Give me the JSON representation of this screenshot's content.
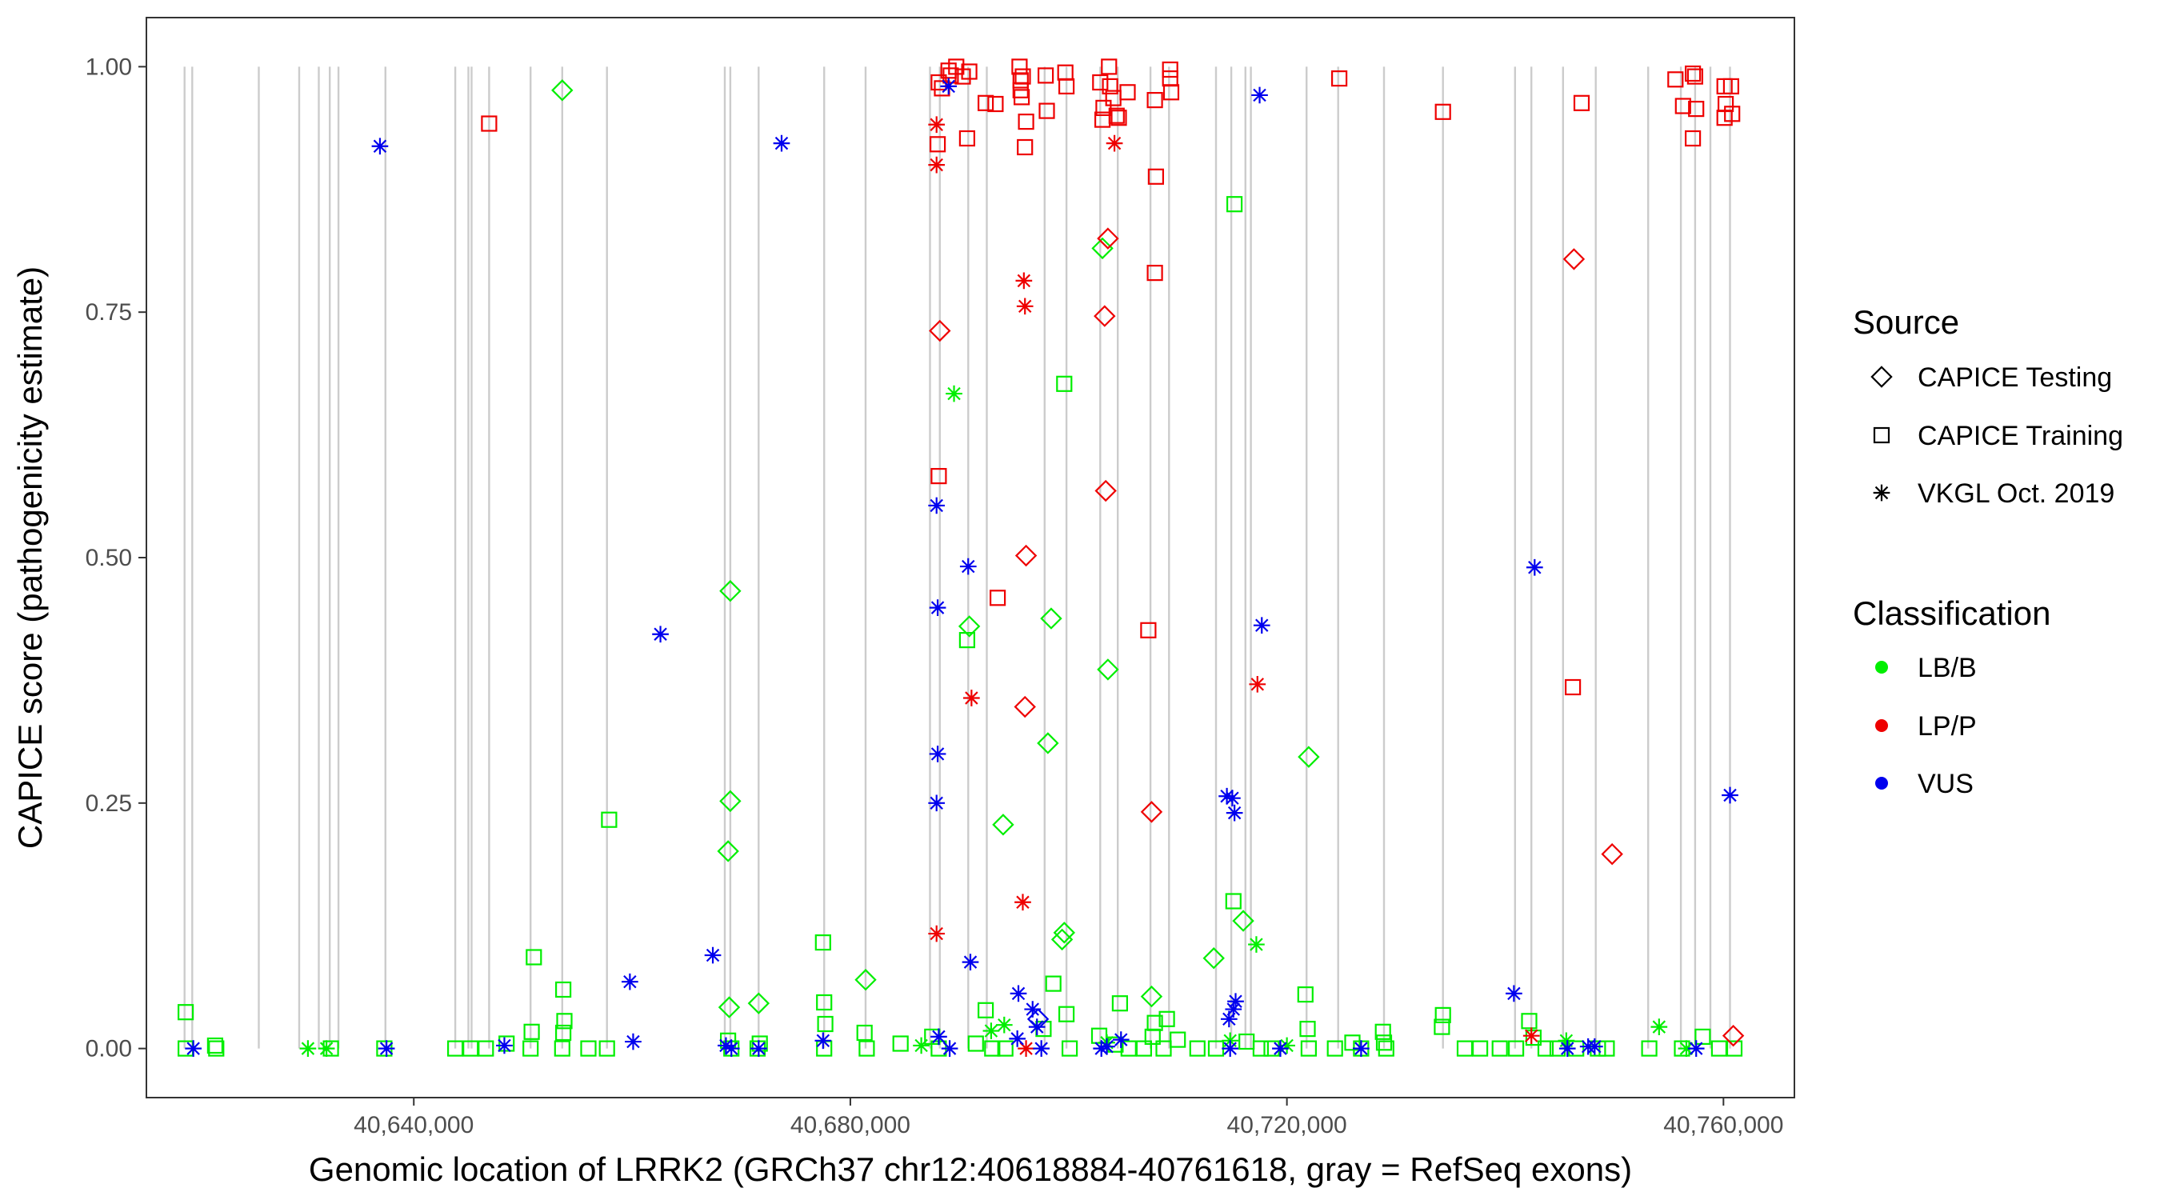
{
  "chart_data": {
    "type": "scatter",
    "xlabel": "Genomic location of LRRK2 (GRCh37 chr12:40618884-40761618, gray = RefSeq exons)",
    "ylabel": "CAPICE score (pathogenicity estimate)",
    "xlim": [
      40615500,
      40766500
    ],
    "ylim": [
      -0.05,
      1.05
    ],
    "x_ticks": [
      40640000,
      40680000,
      40720000,
      40760000
    ],
    "x_tick_labels": [
      "40,640,000",
      "40,680,000",
      "40,720,000",
      "40,760,000"
    ],
    "y_ticks": [
      0.0,
      0.25,
      0.5,
      0.75,
      1.0
    ],
    "y_tick_labels": [
      "0.00",
      "0.25",
      "0.50",
      "0.75",
      "1.00"
    ],
    "exons": [
      40619000,
      40619700,
      40625800,
      40629500,
      40631300,
      40632300,
      40633100,
      40637400,
      40643800,
      40645000,
      40645300,
      40646900,
      40650700,
      40653600,
      40657700,
      40668500,
      40669000,
      40671600,
      40677600,
      40681400,
      40687300,
      40688200,
      40690800,
      40692500,
      40697800,
      40699800,
      40702900,
      40704500,
      40707500,
      40709200,
      40713500,
      40714900,
      40716200,
      40716700,
      40721800,
      40724700,
      40728900,
      40734300,
      40740900,
      40742400,
      40745300,
      40748300,
      40753100,
      40756100,
      40757400,
      40758800,
      40760600
    ],
    "legend": {
      "source_title": "Source",
      "source_items": [
        {
          "label": "CAPICE Testing",
          "shape": "diamond"
        },
        {
          "label": "CAPICE Training",
          "shape": "square"
        },
        {
          "label": "VKGL Oct. 2019",
          "shape": "asterisk"
        }
      ],
      "class_title": "Classification",
      "class_items": [
        {
          "label": "LB/B",
          "color": "#00ee00"
        },
        {
          "label": "LP/P",
          "color": "#ee0000"
        },
        {
          "label": "VUS",
          "color": "#0000ee"
        }
      ]
    },
    "series": [
      {
        "name": "LB/B - CAPICE Testing",
        "class": "LB/B",
        "source": "CAPICE Testing",
        "color": "#00ee00",
        "shape": "diamond",
        "points": [
          [
            40653600,
            0.976
          ],
          [
            40669000,
            0.466
          ],
          [
            40669000,
            0.252
          ],
          [
            40668800,
            0.201
          ],
          [
            40668900,
            0.042
          ],
          [
            40671600,
            0.046
          ],
          [
            40681400,
            0.07
          ],
          [
            40690900,
            0.43
          ],
          [
            40694000,
            0.228
          ],
          [
            40698400,
            0.438
          ],
          [
            40698100,
            0.311
          ],
          [
            40699600,
            0.118
          ],
          [
            40699400,
            0.111
          ],
          [
            40703100,
            0.815
          ],
          [
            40703600,
            0.386
          ],
          [
            40707600,
            0.053
          ],
          [
            40713300,
            0.092
          ],
          [
            40716000,
            0.13
          ],
          [
            40722000,
            0.297
          ]
        ]
      },
      {
        "name": "LB/B - CAPICE Training",
        "class": "LB/B",
        "source": "CAPICE Training",
        "color": "#00ee00",
        "shape": "square",
        "points": [
          [
            40619100,
            0.037
          ],
          [
            40619100,
            0.0
          ],
          [
            40621800,
            0.003
          ],
          [
            40621900,
            0.0
          ],
          [
            40632400,
            0.0
          ],
          [
            40637300,
            0.0
          ],
          [
            40643800,
            0.0
          ],
          [
            40645200,
            0.0
          ],
          [
            40646600,
            0.0
          ],
          [
            40648500,
            0.005
          ],
          [
            40650700,
            0.0
          ],
          [
            40650800,
            0.017
          ],
          [
            40651000,
            0.093
          ],
          [
            40653700,
            0.06
          ],
          [
            40653800,
            0.028
          ],
          [
            40653700,
            0.016
          ],
          [
            40653600,
            0.0
          ],
          [
            40656000,
            0.0
          ],
          [
            40657700,
            0.0
          ],
          [
            40657900,
            0.233
          ],
          [
            40668800,
            0.008
          ],
          [
            40669100,
            0.0
          ],
          [
            40671700,
            0.005
          ],
          [
            40671500,
            0.0
          ],
          [
            40677500,
            0.108
          ],
          [
            40677600,
            0.047
          ],
          [
            40677700,
            0.025
          ],
          [
            40677600,
            0.0
          ],
          [
            40681300,
            0.016
          ],
          [
            40681500,
            0.0
          ],
          [
            40684600,
            0.005
          ],
          [
            40687500,
            0.012
          ],
          [
            40688100,
            0.0
          ],
          [
            40690700,
            0.416
          ],
          [
            40691500,
            0.005
          ],
          [
            40692400,
            0.039
          ],
          [
            40693000,
            0.0
          ],
          [
            40694200,
            0.0
          ],
          [
            40697700,
            0.02
          ],
          [
            40698600,
            0.066
          ],
          [
            40699600,
            0.677
          ],
          [
            40699800,
            0.035
          ],
          [
            40700100,
            0.0
          ],
          [
            40702800,
            0.013
          ],
          [
            40704300,
            0.004
          ],
          [
            40704700,
            0.046
          ],
          [
            40705500,
            0.0
          ],
          [
            40706900,
            0.0
          ],
          [
            40707700,
            0.012
          ],
          [
            40707900,
            0.026
          ],
          [
            40708700,
            0.0
          ],
          [
            40709000,
            0.03
          ],
          [
            40710000,
            0.009
          ],
          [
            40711800,
            0.0
          ],
          [
            40713500,
            0.0
          ],
          [
            40715200,
            0.86
          ],
          [
            40715100,
            0.15
          ],
          [
            40716300,
            0.007
          ],
          [
            40717600,
            0.0
          ],
          [
            40718600,
            0.0
          ],
          [
            40721700,
            0.055
          ],
          [
            40721900,
            0.02
          ],
          [
            40722000,
            0.0
          ],
          [
            40724400,
            0.0
          ],
          [
            40726000,
            0.006
          ],
          [
            40726800,
            0.0
          ],
          [
            40728800,
            0.017
          ],
          [
            40728900,
            0.006
          ],
          [
            40729100,
            0.0
          ],
          [
            40734300,
            0.034
          ],
          [
            40734200,
            0.022
          ],
          [
            40736300,
            0.0
          ],
          [
            40737700,
            0.0
          ],
          [
            40739500,
            0.0
          ],
          [
            40741000,
            0.0
          ],
          [
            40742200,
            0.028
          ],
          [
            40742600,
            0.011
          ],
          [
            40743700,
            0.0
          ],
          [
            40744800,
            0.0
          ],
          [
            40746500,
            0.0
          ],
          [
            40748500,
            0.0
          ],
          [
            40749300,
            0.0
          ],
          [
            40753200,
            0.0
          ],
          [
            40756200,
            0.0
          ],
          [
            40758100,
            0.012
          ],
          [
            40759600,
            0.0
          ],
          [
            40761000,
            0.0
          ]
        ]
      },
      {
        "name": "LB/B - VKGL Oct. 2019",
        "class": "LB/B",
        "source": "VKGL Oct. 2019",
        "color": "#00ee00",
        "shape": "asterisk",
        "points": [
          [
            40630300,
            0.0
          ],
          [
            40632000,
            0.0
          ],
          [
            40686500,
            0.003
          ],
          [
            40689500,
            0.667
          ],
          [
            40692900,
            0.018
          ],
          [
            40694100,
            0.024
          ],
          [
            40703500,
            0.006
          ],
          [
            40714800,
            0.008
          ],
          [
            40717200,
            0.106
          ],
          [
            40720000,
            0.003
          ],
          [
            40745600,
            0.008
          ],
          [
            40754100,
            0.022
          ],
          [
            40756600,
            0.0
          ]
        ]
      },
      {
        "name": "LP/P - CAPICE Testing",
        "class": "LP/P",
        "source": "CAPICE Testing",
        "color": "#ee0000",
        "shape": "diamond",
        "points": [
          [
            40688200,
            0.731
          ],
          [
            40696100,
            0.502
          ],
          [
            40696000,
            0.348
          ],
          [
            40703300,
            0.746
          ],
          [
            40703600,
            0.825
          ],
          [
            40703400,
            0.568
          ],
          [
            40707600,
            0.241
          ],
          [
            40746300,
            0.804
          ],
          [
            40749800,
            0.198
          ],
          [
            40760900,
            0.013
          ]
        ]
      },
      {
        "name": "LP/P - CAPICE Training",
        "class": "LP/P",
        "source": "CAPICE Training",
        "color": "#ee0000",
        "shape": "square",
        "points": [
          [
            40646900,
            0.942
          ],
          [
            40688100,
            0.984
          ],
          [
            40688400,
            0.978
          ],
          [
            40688000,
            0.921
          ],
          [
            40688100,
            0.583
          ],
          [
            40689000,
            0.996
          ],
          [
            40689700,
            1.0
          ],
          [
            40689200,
            0.991
          ],
          [
            40690300,
            0.99
          ],
          [
            40690900,
            0.995
          ],
          [
            40690700,
            0.927
          ],
          [
            40692400,
            0.963
          ],
          [
            40693300,
            0.962
          ],
          [
            40693500,
            0.459
          ],
          [
            40695500,
            1.0
          ],
          [
            40695800,
            0.99
          ],
          [
            40695600,
            0.986
          ],
          [
            40695600,
            0.976
          ],
          [
            40695700,
            0.969
          ],
          [
            40696100,
            0.944
          ],
          [
            40696000,
            0.918
          ],
          [
            40697900,
            0.991
          ],
          [
            40698000,
            0.955
          ],
          [
            40699700,
            0.994
          ],
          [
            40699800,
            0.98
          ],
          [
            40702900,
            0.984
          ],
          [
            40703200,
            0.958
          ],
          [
            40703100,
            0.946
          ],
          [
            40703700,
            1.0
          ],
          [
            40703800,
            0.98
          ],
          [
            40704100,
            0.968
          ],
          [
            40704400,
            0.95
          ],
          [
            40704600,
            0.948
          ],
          [
            40705400,
            0.974
          ],
          [
            40707300,
            0.426
          ],
          [
            40707900,
            0.966
          ],
          [
            40708000,
            0.888
          ],
          [
            40707900,
            0.79
          ],
          [
            40709300,
            0.997
          ],
          [
            40709300,
            0.988
          ],
          [
            40709400,
            0.974
          ],
          [
            40724800,
            0.988
          ],
          [
            40734300,
            0.954
          ],
          [
            40746200,
            0.368
          ],
          [
            40747000,
            0.963
          ],
          [
            40755600,
            0.987
          ],
          [
            40756300,
            0.96
          ],
          [
            40757200,
            0.993
          ],
          [
            40757400,
            0.99
          ],
          [
            40757500,
            0.957
          ],
          [
            40757200,
            0.927
          ],
          [
            40760100,
            0.98
          ],
          [
            40760200,
            0.962
          ],
          [
            40760100,
            0.948
          ],
          [
            40760700,
            0.98
          ],
          [
            40760800,
            0.952
          ]
        ]
      },
      {
        "name": "LP/P - VKGL Oct. 2019",
        "class": "LP/P",
        "source": "VKGL Oct. 2019",
        "color": "#ee0000",
        "shape": "asterisk",
        "points": [
          [
            40687900,
            0.941
          ],
          [
            40687900,
            0.9
          ],
          [
            40687900,
            0.117
          ],
          [
            40691100,
            0.357
          ],
          [
            40695900,
            0.782
          ],
          [
            40696000,
            0.756
          ],
          [
            40695800,
            0.149
          ],
          [
            40696100,
            0.0
          ],
          [
            40704200,
            0.922
          ],
          [
            40717300,
            0.371
          ],
          [
            40742400,
            0.013
          ]
        ]
      },
      {
        "name": "VUS - CAPICE Testing",
        "class": "VUS",
        "source": "CAPICE Testing",
        "color": "#0000ee",
        "shape": "diamond",
        "points": [
          [
            40697200,
            0.03
          ]
        ]
      },
      {
        "name": "VUS - CAPICE Training",
        "class": "VUS",
        "source": "CAPICE Training",
        "color": "#0000ee",
        "shape": "square",
        "points": []
      },
      {
        "name": "VUS - VKGL Oct. 2019",
        "class": "VUS",
        "source": "VKGL Oct. 2019",
        "color": "#0000ee",
        "shape": "asterisk",
        "points": [
          [
            40619800,
            0.0
          ],
          [
            40636900,
            0.919
          ],
          [
            40637500,
            0.0
          ],
          [
            40648300,
            0.003
          ],
          [
            40659800,
            0.068
          ],
          [
            40660100,
            0.007
          ],
          [
            40662600,
            0.422
          ],
          [
            40667400,
            0.095
          ],
          [
            40668600,
            0.003
          ],
          [
            40669100,
            0.0
          ],
          [
            40671600,
            0.0
          ],
          [
            40673700,
            0.922
          ],
          [
            40677500,
            0.008
          ],
          [
            40687900,
            0.553
          ],
          [
            40688000,
            0.449
          ],
          [
            40688000,
            0.3
          ],
          [
            40687900,
            0.25
          ],
          [
            40688100,
            0.012
          ],
          [
            40689000,
            0.98
          ],
          [
            40689100,
            0.0
          ],
          [
            40690800,
            0.491
          ],
          [
            40691000,
            0.088
          ],
          [
            40695400,
            0.056
          ],
          [
            40695300,
            0.01
          ],
          [
            40696700,
            0.04
          ],
          [
            40697100,
            0.022
          ],
          [
            40697500,
            0.0
          ],
          [
            40703000,
            0.0
          ],
          [
            40703500,
            0.002
          ],
          [
            40704800,
            0.009
          ],
          [
            40714500,
            0.257
          ],
          [
            40715000,
            0.255
          ],
          [
            40715200,
            0.24
          ],
          [
            40715300,
            0.048
          ],
          [
            40715100,
            0.04
          ],
          [
            40714700,
            0.03
          ],
          [
            40714800,
            0.0
          ],
          [
            40717500,
            0.971
          ],
          [
            40717700,
            0.431
          ],
          [
            40719400,
            0.0
          ],
          [
            40726800,
            0.0
          ],
          [
            40740800,
            0.056
          ],
          [
            40742700,
            0.49
          ],
          [
            40745700,
            0.0
          ],
          [
            40747600,
            0.002
          ],
          [
            40748200,
            0.002
          ],
          [
            40757500,
            0.0
          ],
          [
            40760600,
            0.258
          ]
        ]
      }
    ]
  }
}
